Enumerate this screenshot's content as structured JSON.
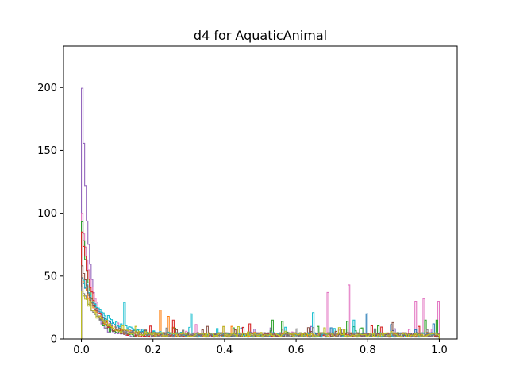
{
  "chart_data": {
    "type": "histogram",
    "title": "d4 for AquaticAnimal",
    "xlabel": "",
    "ylabel": "",
    "xlim": [
      -0.05,
      1.05
    ],
    "ylim": [
      0,
      233
    ],
    "xticks": [
      "0.0",
      "0.2",
      "0.4",
      "0.6",
      "0.8",
      "1.0"
    ],
    "yticks": [
      "0",
      "50",
      "100",
      "150",
      "200"
    ],
    "grid": false,
    "legend": "none",
    "histtype": "step",
    "colors": [
      "#1f77b4",
      "#ff7f0e",
      "#2ca02c",
      "#d62728",
      "#9467bd",
      "#8c564b",
      "#e377c2",
      "#7f7f7f",
      "#bcbd22",
      "#17becf"
    ],
    "series": [
      {
        "color": "#9467bd",
        "peak": 222,
        "decay": 0.018,
        "spikes": []
      },
      {
        "color": "#e377c2",
        "peak": 103,
        "decay": 0.03,
        "spikes": [
          [
            0.685,
            37
          ],
          [
            0.745,
            43
          ],
          [
            0.93,
            30
          ],
          [
            0.955,
            32
          ],
          [
            1.0,
            30
          ]
        ]
      },
      {
        "color": "#2ca02c",
        "peak": 97,
        "decay": 0.025,
        "spikes": [
          [
            0.53,
            15
          ],
          [
            0.56,
            14
          ],
          [
            0.66,
            10
          ],
          [
            0.74,
            14
          ],
          [
            0.96,
            15
          ],
          [
            0.99,
            15
          ]
        ]
      },
      {
        "color": "#1f77b4",
        "peak": 48,
        "decay": 0.05,
        "spikes": [
          [
            0.45,
            8
          ],
          [
            0.795,
            20
          ],
          [
            0.98,
            12
          ]
        ]
      },
      {
        "color": "#ff7f0e",
        "peak": 50,
        "decay": 0.04,
        "spikes": [
          [
            0.22,
            23
          ],
          [
            0.24,
            18
          ],
          [
            0.42,
            10
          ]
        ]
      },
      {
        "color": "#d62728",
        "peak": 90,
        "decay": 0.03,
        "spikes": [
          [
            0.255,
            15
          ],
          [
            0.47,
            12
          ],
          [
            0.94,
            10
          ]
        ]
      },
      {
        "color": "#17becf",
        "peak": 45,
        "decay": 0.06,
        "spikes": [
          [
            0.12,
            29
          ],
          [
            0.305,
            20
          ],
          [
            0.645,
            21
          ],
          [
            0.76,
            15
          ]
        ]
      },
      {
        "color": "#8c564b",
        "peak": 60,
        "decay": 0.035,
        "spikes": [
          [
            0.35,
            10
          ],
          [
            0.63,
            9
          ],
          [
            0.87,
            13
          ]
        ]
      },
      {
        "color": "#7f7f7f",
        "peak": 40,
        "decay": 0.045,
        "spikes": [
          [
            0.6,
            8
          ],
          [
            0.82,
            8
          ]
        ]
      },
      {
        "color": "#bcbd22",
        "peak": 35,
        "decay": 0.05,
        "spikes": [
          [
            0.15,
            10
          ],
          [
            0.72,
            9
          ]
        ]
      }
    ]
  }
}
